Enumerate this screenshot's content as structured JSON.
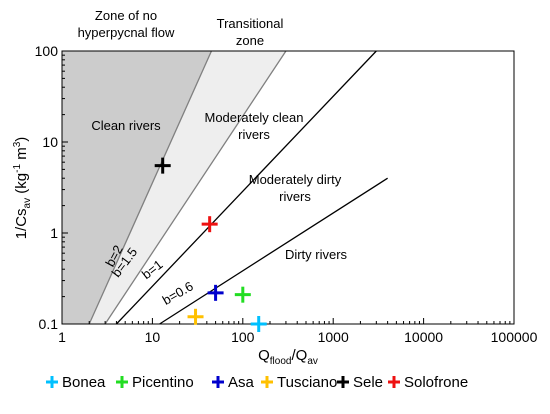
{
  "chart_data": {
    "type": "scatter",
    "x_scale": "log",
    "y_scale": "log",
    "xlim": [
      1,
      100000
    ],
    "ylim": [
      0.1,
      100
    ],
    "x_ticks": [
      1,
      10,
      100,
      1000,
      10000,
      100000
    ],
    "x_tick_labels": [
      "1",
      "10",
      "100",
      "1000",
      "10000",
      "100000"
    ],
    "y_ticks": [
      0.1,
      1,
      10,
      100
    ],
    "y_tick_labels": [
      "0.1",
      "1",
      "10",
      "100"
    ],
    "xlabel": {
      "main": "Q",
      "sub1": "flood",
      "mid": "/Q",
      "sub2": "av"
    },
    "ylabel": {
      "main": "1/Cs",
      "sub": "av",
      "mid": " (kg",
      "sup1": "-1",
      "m": " m",
      "sup2": "3",
      "end": ")"
    },
    "zones": [
      {
        "name": "no-hyperpycnal",
        "color": "#cccccc",
        "polygon": [
          [
            1,
            0.1
          ],
          [
            1,
            100
          ],
          [
            45,
            100
          ],
          [
            2,
            0.1
          ]
        ]
      },
      {
        "name": "transitional",
        "color": "#eeeeee",
        "polygon": [
          [
            2,
            0.1
          ],
          [
            45,
            100
          ],
          [
            300,
            100
          ],
          [
            3,
            0.1
          ]
        ]
      }
    ],
    "reference_lines": [
      {
        "label": "b=2",
        "color": "#808080",
        "points": [
          [
            2,
            0.1
          ],
          [
            45,
            100
          ]
        ]
      },
      {
        "label": "b=1.5",
        "color": "#808080",
        "points": [
          [
            3,
            0.1
          ],
          [
            300,
            100
          ]
        ]
      },
      {
        "label": "b=1",
        "color": "#000000",
        "points": [
          [
            4,
            0.1
          ],
          [
            3000,
            100
          ]
        ]
      },
      {
        "label": "b=0.6",
        "color": "#000000",
        "points": [
          [
            12,
            0.1
          ],
          [
            4000,
            4
          ]
        ]
      }
    ],
    "zone_labels": [
      {
        "lines": [
          "Zone of no",
          "hyperpycnal flow"
        ]
      },
      {
        "lines": [
          "Transitional",
          "zone"
        ]
      },
      {
        "lines": [
          "Clean rivers"
        ]
      },
      {
        "lines": [
          "Moderately clean",
          "rivers"
        ]
      },
      {
        "lines": [
          "Moderately dirty",
          "rivers"
        ]
      },
      {
        "lines": [
          "Dirty rivers"
        ]
      }
    ],
    "series": [
      {
        "name": "Bonea",
        "color": "#00c0ff",
        "x": 150,
        "y": 0.1
      },
      {
        "name": "Picentino",
        "color": "#22dd22",
        "x": 100,
        "y": 0.21
      },
      {
        "name": "Asa",
        "color": "#0000cc",
        "x": 50,
        "y": 0.22
      },
      {
        "name": "Tusciano",
        "color": "#ffc000",
        "x": 30,
        "y": 0.12
      },
      {
        "name": "Sele",
        "color": "#000000",
        "x": 13,
        "y": 5.5
      },
      {
        "name": "Solofrone",
        "color": "#ee1111",
        "x": 43,
        "y": 1.25
      }
    ]
  }
}
